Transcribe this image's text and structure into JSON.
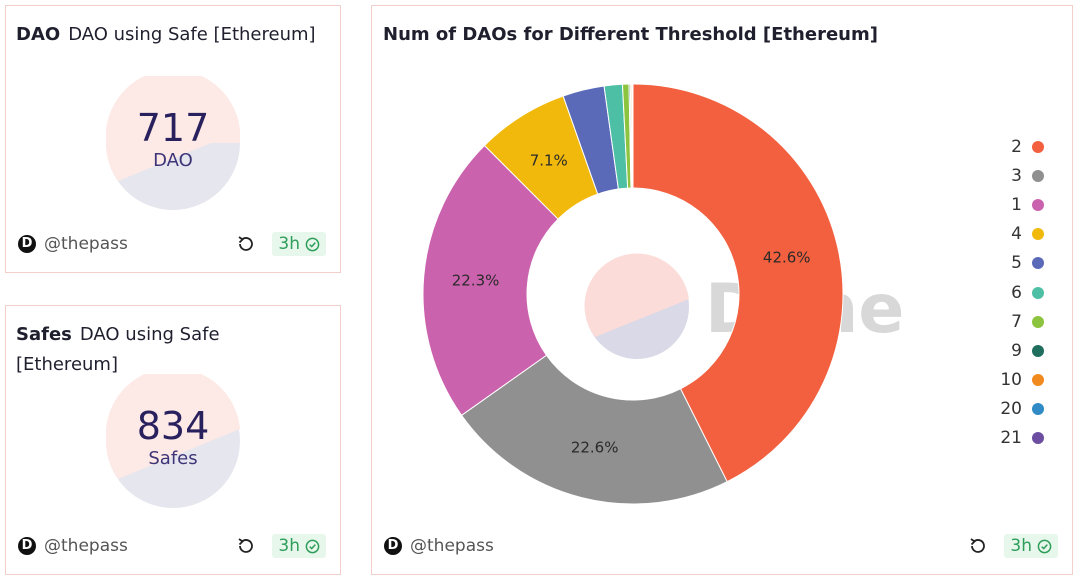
{
  "cards": {
    "dao": {
      "title_bold": "DAO",
      "title": "DAO using Safe [Ethereum]",
      "value": "717",
      "unit": "DAO",
      "author": "@thepass",
      "age": "3h"
    },
    "safes": {
      "title_bold": "Safes",
      "title": "DAO using Safe [Ethereum]",
      "value": "834",
      "unit": "Safes",
      "author": "@thepass",
      "age": "3h"
    },
    "chart": {
      "author": "@thepass",
      "age": "3h",
      "watermark": "Dune"
    }
  },
  "colors": {
    "counter_top": "#fde9e5",
    "counter_bottom": "#e6e6ee"
  },
  "icons": [
    "author-avatar-icon",
    "refresh-icon",
    "check-circle-icon"
  ],
  "chart_data": {
    "type": "pie",
    "title": "Num of DAOs for Different Threshold [Ethereum]",
    "legend_position": "right",
    "series": [
      {
        "name": "2",
        "value": 42.6,
        "color": "#f2603f",
        "label": "42.6%"
      },
      {
        "name": "3",
        "value": 22.6,
        "color": "#909090",
        "label": "22.6%"
      },
      {
        "name": "1",
        "value": 22.3,
        "color": "#cb62ae",
        "label": "22.3%"
      },
      {
        "name": "4",
        "value": 7.1,
        "color": "#f1b90c",
        "label": "7.1%"
      },
      {
        "name": "5",
        "value": 3.2,
        "color": "#5a6ab8",
        "label": ""
      },
      {
        "name": "6",
        "value": 1.4,
        "color": "#4dbfa4",
        "label": ""
      },
      {
        "name": "7",
        "value": 0.5,
        "color": "#8dc43f",
        "label": ""
      },
      {
        "name": "9",
        "value": 0.1,
        "color": "#1f6e5e",
        "label": ""
      },
      {
        "name": "10",
        "value": 0.1,
        "color": "#f08a1e",
        "label": ""
      },
      {
        "name": "20",
        "value": 0.05,
        "color": "#2f8ac5",
        "label": ""
      },
      {
        "name": "21",
        "value": 0.05,
        "color": "#6b4ea2",
        "label": ""
      }
    ]
  }
}
